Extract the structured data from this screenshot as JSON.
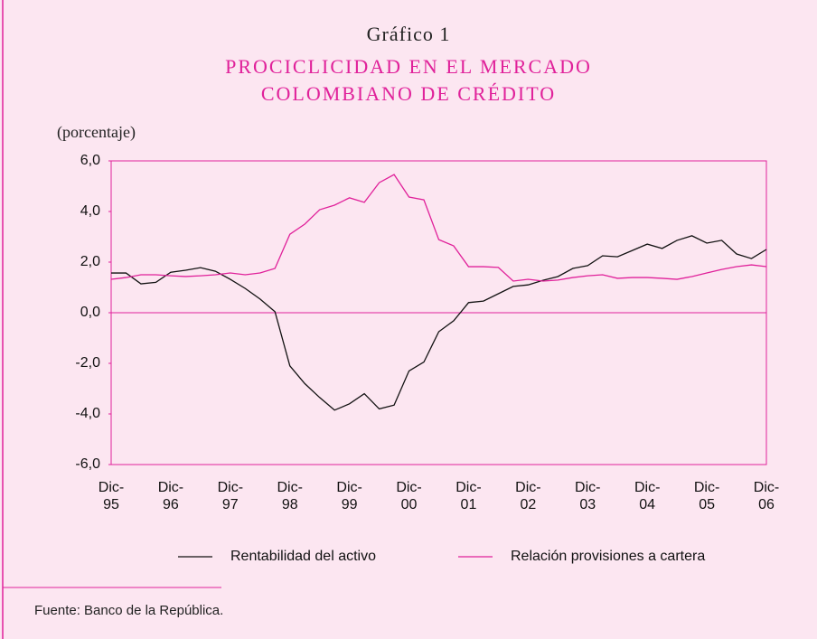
{
  "chart_data": {
    "type": "line",
    "title": "Gráfico 1",
    "subtitle": [
      "PROCICLICIDAD EN EL MERCADO",
      "COLOMBIANO DE CRÉDITO"
    ],
    "y_label": "(porcentaje)",
    "source": "Fuente: Banco de la República.",
    "categories": [
      "Dic-95",
      null,
      null,
      null,
      "Dic-96",
      null,
      null,
      null,
      "Dic-97",
      null,
      null,
      null,
      "Dic-98",
      null,
      null,
      null,
      "Dic-99",
      null,
      null,
      null,
      "Dic-00",
      null,
      null,
      null,
      "Dic-01",
      null,
      null,
      null,
      "Dic-02",
      null,
      null,
      null,
      "Dic-03",
      null,
      null,
      null,
      "Dic-04",
      null,
      null,
      null,
      "Dic-05",
      null,
      null,
      null,
      "Dic-06"
    ],
    "series": [
      {
        "name": "Rentabilidad del activo",
        "color": "#111111",
        "values": [
          1.57,
          1.57,
          1.14,
          1.2,
          1.6,
          1.68,
          1.78,
          1.64,
          1.32,
          0.96,
          0.54,
          0.04,
          -2.1,
          -2.8,
          -3.35,
          -3.85,
          -3.6,
          -3.2,
          -3.8,
          -3.65,
          -2.3,
          -1.95,
          -0.75,
          -0.32,
          0.4,
          0.46,
          0.75,
          1.04,
          1.1,
          1.28,
          1.43,
          1.75,
          1.86,
          2.25,
          2.21,
          2.46,
          2.71,
          2.54,
          2.86,
          3.04,
          2.75,
          2.86,
          2.32,
          2.14,
          2.5
        ]
      },
      {
        "name": "Relación provisiones a cartera",
        "color": "#e0219a",
        "values": [
          1.32,
          1.39,
          1.5,
          1.5,
          1.46,
          1.43,
          1.46,
          1.5,
          1.57,
          1.5,
          1.57,
          1.75,
          3.1,
          3.5,
          4.07,
          4.25,
          4.54,
          4.36,
          5.14,
          5.46,
          4.57,
          4.46,
          2.89,
          2.64,
          1.82,
          1.82,
          1.79,
          1.25,
          1.32,
          1.25,
          1.29,
          1.39,
          1.46,
          1.5,
          1.36,
          1.39,
          1.39,
          1.36,
          1.32,
          1.43,
          1.57,
          1.71,
          1.82,
          1.89,
          1.82
        ]
      }
    ],
    "ylim": [
      -6,
      6
    ],
    "yticks": [
      {
        "value": 6,
        "label": "6,0"
      },
      {
        "value": 4,
        "label": "4,0"
      },
      {
        "value": 2,
        "label": "2,0"
      },
      {
        "value": 0,
        "label": "0,0"
      },
      {
        "value": -2,
        "label": "-2,0"
      },
      {
        "value": -4,
        "label": "-4,0"
      },
      {
        "value": -6,
        "label": "-6,0"
      }
    ],
    "grid": false,
    "legend": "bottom"
  }
}
